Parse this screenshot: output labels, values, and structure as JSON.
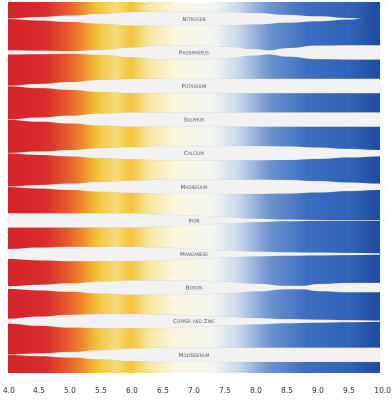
{
  "chart_data": {
    "type": "area",
    "title": "",
    "xlabel": "",
    "ylabel": "",
    "xlim": [
      4.0,
      10.0
    ],
    "x_ticks": [
      "4.0",
      "4.5",
      "5.0",
      "5.5",
      "6.0",
      "6.5",
      "7.0",
      "7.5",
      "8.0",
      "8.5",
      "9.0",
      "9.5",
      "10.0"
    ],
    "colors": {
      "acid_red": "#d6232b",
      "acid_orange": "#ee7a2a",
      "mid_yellow": "#f3c43a",
      "neutral_pale": "#fbf6df",
      "alk_blue": "#2f63b8",
      "alk_deep": "#1f4a9e",
      "band_fill": "#f2f2f2"
    },
    "series": [
      {
        "name": "Nitrogen",
        "label": "Nitrogen",
        "x": [
          4.0,
          4.5,
          5.0,
          5.5,
          6.0,
          6.5,
          7.0,
          7.5,
          8.0,
          8.5,
          9.0,
          9.5,
          9.75
        ],
        "availability": [
          0.05,
          0.25,
          0.45,
          0.7,
          0.95,
          1.0,
          1.0,
          0.95,
          0.8,
          0.55,
          0.35,
          0.12,
          0.0
        ]
      },
      {
        "name": "Phosphorus",
        "label": "Phosphorus",
        "x": [
          4.0,
          4.5,
          5.0,
          5.5,
          6.0,
          6.5,
          7.0,
          7.5,
          8.0,
          8.2,
          8.5,
          9.0,
          9.5,
          10.0
        ],
        "availability": [
          0.3,
          0.25,
          0.2,
          0.35,
          0.7,
          1.0,
          1.0,
          0.8,
          0.45,
          0.3,
          0.6,
          0.95,
          1.0,
          1.0
        ]
      },
      {
        "name": "Potassium",
        "label": "Potassium",
        "x": [
          4.0,
          4.5,
          5.0,
          5.5,
          6.0,
          6.5,
          7.0,
          7.5,
          8.0,
          8.5,
          9.0,
          9.5,
          10.0
        ],
        "availability": [
          0.05,
          0.3,
          0.55,
          0.85,
          1.0,
          1.0,
          1.0,
          1.0,
          1.0,
          1.0,
          1.0,
          1.0,
          1.0
        ]
      },
      {
        "name": "Sulphur",
        "label": "Sulphur",
        "x": [
          4.0,
          4.5,
          5.0,
          5.5,
          6.0,
          6.5,
          7.0,
          7.5,
          8.0,
          8.5,
          9.0,
          9.5,
          10.0
        ],
        "availability": [
          0.05,
          0.3,
          0.55,
          0.85,
          1.0,
          1.0,
          1.0,
          1.0,
          1.0,
          1.0,
          1.0,
          1.0,
          1.0
        ]
      },
      {
        "name": "Calcium",
        "label": "Calcium",
        "x": [
          4.0,
          4.5,
          5.0,
          5.5,
          6.0,
          6.5,
          7.0,
          7.5,
          8.0,
          8.5,
          9.0,
          9.5,
          10.0
        ],
        "availability": [
          0.05,
          0.25,
          0.45,
          0.7,
          0.85,
          1.0,
          1.0,
          1.0,
          1.0,
          0.95,
          0.8,
          0.6,
          0.45
        ]
      },
      {
        "name": "Magnesium",
        "label": "Magnesium",
        "x": [
          4.0,
          4.5,
          5.0,
          5.5,
          6.0,
          6.5,
          7.0,
          7.5,
          8.0,
          8.5,
          9.0,
          9.5,
          10.0
        ],
        "availability": [
          0.05,
          0.25,
          0.45,
          0.7,
          0.85,
          1.0,
          1.0,
          1.0,
          1.0,
          0.95,
          0.8,
          0.6,
          0.45
        ]
      },
      {
        "name": "Iron",
        "label": "Iron",
        "x": [
          4.0,
          4.5,
          5.0,
          5.5,
          6.0,
          6.5,
          7.0,
          7.5,
          8.0,
          8.5,
          9.0,
          9.5,
          10.0
        ],
        "availability": [
          1.0,
          1.0,
          1.0,
          1.0,
          1.0,
          0.85,
          0.65,
          0.45,
          0.25,
          0.12,
          0.06,
          0.05,
          0.05
        ]
      },
      {
        "name": "Manganese",
        "label": "Manganese",
        "x": [
          4.0,
          4.5,
          5.0,
          5.5,
          6.0,
          6.5,
          7.0,
          7.5,
          8.0,
          8.5,
          9.0,
          9.5,
          10.0
        ],
        "availability": [
          0.7,
          0.9,
          1.0,
          1.0,
          1.0,
          0.9,
          0.7,
          0.5,
          0.35,
          0.25,
          0.2,
          0.15,
          0.1
        ]
      },
      {
        "name": "Boron",
        "label": "Boron",
        "x": [
          4.0,
          4.5,
          5.0,
          5.5,
          6.0,
          6.5,
          7.0,
          7.5,
          8.0,
          8.5,
          8.75,
          9.0,
          9.5,
          10.0
        ],
        "availability": [
          0.2,
          0.4,
          0.6,
          0.85,
          1.0,
          1.0,
          1.0,
          0.8,
          0.55,
          0.25,
          0.25,
          0.5,
          0.65,
          0.65
        ]
      },
      {
        "name": "Copper and Zinc",
        "label": "Copper and Zinc",
        "x": [
          4.0,
          4.5,
          5.0,
          5.5,
          6.0,
          6.5,
          7.0,
          7.5,
          8.0,
          8.5,
          9.0,
          9.5,
          10.0
        ],
        "availability": [
          0.35,
          0.65,
          0.9,
          1.0,
          1.0,
          0.95,
          0.8,
          0.6,
          0.45,
          0.3,
          0.22,
          0.15,
          0.1
        ]
      },
      {
        "name": "Molybdenum",
        "label": "Molybdenum",
        "x": [
          4.0,
          4.5,
          5.0,
          5.5,
          6.0,
          6.5,
          7.0,
          7.5,
          8.0,
          8.5,
          9.0,
          9.5,
          10.0
        ],
        "availability": [
          0.05,
          0.2,
          0.4,
          0.65,
          0.9,
          1.0,
          1.0,
          1.0,
          1.0,
          1.0,
          1.0,
          1.0,
          1.0
        ]
      }
    ]
  }
}
